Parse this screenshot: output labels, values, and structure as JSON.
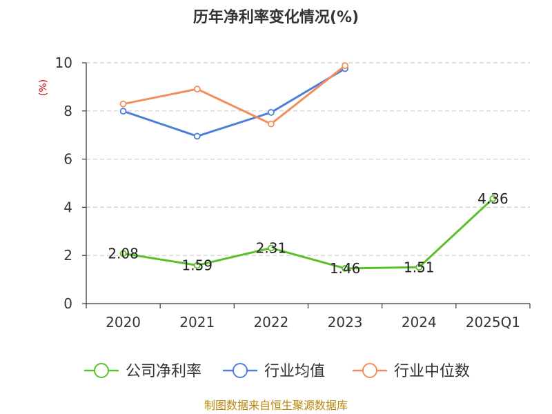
{
  "chart_data": {
    "type": "line",
    "title": "历年净利率变化情况(%)",
    "y_unit": "(%)",
    "categories": [
      "2020",
      "2021",
      "2022",
      "2023",
      "2024",
      "2025Q1"
    ],
    "ylim": [
      0,
      10
    ],
    "yticks": [
      0,
      2,
      4,
      6,
      8,
      10
    ],
    "grid": true,
    "legend_position": "bottom",
    "series": [
      {
        "name": "公司净利率",
        "color": "#5cbf2a",
        "values": [
          2.08,
          1.59,
          2.31,
          1.46,
          1.51,
          4.36
        ],
        "show_labels": true
      },
      {
        "name": "行业均值",
        "color": "#4e7fd8",
        "values": [
          7.99,
          6.95,
          7.94,
          9.76,
          null,
          null
        ],
        "show_labels": false
      },
      {
        "name": "行业中位数",
        "color": "#f28e5c",
        "values": [
          8.29,
          8.91,
          7.46,
          9.88,
          null,
          null
        ],
        "show_labels": false
      }
    ]
  },
  "source": "制图数据来自恒生聚源数据库"
}
